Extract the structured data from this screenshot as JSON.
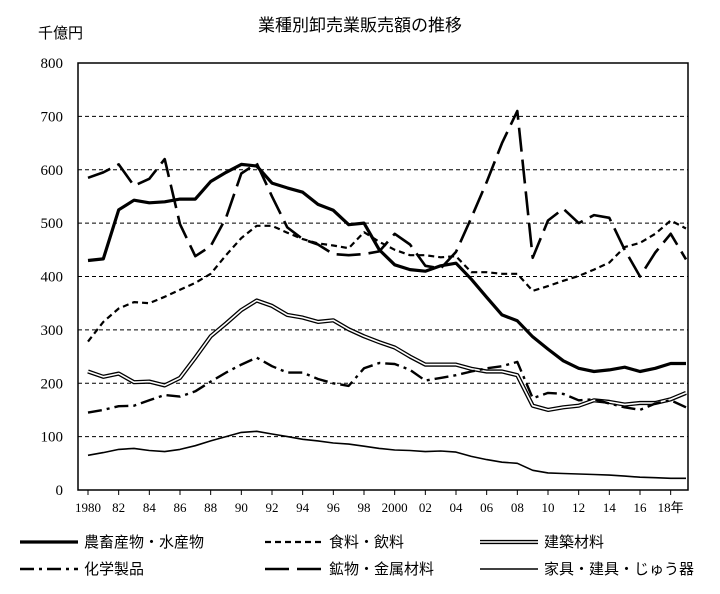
{
  "chart_data": {
    "type": "line",
    "title": "業種別卸売業販売額の推移",
    "unit_label": "千億円",
    "ylabel": "千億円",
    "xlabel": "",
    "ylim": [
      0,
      800
    ],
    "y_ticks": [
      "0",
      "100",
      "200",
      "300",
      "400",
      "500",
      "600",
      "700",
      "800"
    ],
    "x": [
      1980,
      1981,
      1982,
      1983,
      1984,
      1985,
      1986,
      1987,
      1988,
      1989,
      1990,
      1991,
      1992,
      1993,
      1994,
      1995,
      1996,
      1997,
      1998,
      1999,
      2000,
      2001,
      2002,
      2003,
      2004,
      2005,
      2006,
      2007,
      2008,
      2009,
      2010,
      2011,
      2012,
      2013,
      2014,
      2015,
      2016,
      2017,
      2018,
      2019
    ],
    "x_tick_labels": [
      {
        "x": 1980,
        "label": "1980"
      },
      {
        "x": 1982,
        "label": "82"
      },
      {
        "x": 1984,
        "label": "84"
      },
      {
        "x": 1986,
        "label": "86"
      },
      {
        "x": 1988,
        "label": "88"
      },
      {
        "x": 1990,
        "label": "90"
      },
      {
        "x": 1992,
        "label": "92"
      },
      {
        "x": 1994,
        "label": "94"
      },
      {
        "x": 1996,
        "label": "96"
      },
      {
        "x": 1998,
        "label": "98"
      },
      {
        "x": 2000,
        "label": "2000"
      },
      {
        "x": 2002,
        "label": "02"
      },
      {
        "x": 2004,
        "label": "04"
      },
      {
        "x": 2006,
        "label": "06"
      },
      {
        "x": 2008,
        "label": "08"
      },
      {
        "x": 2010,
        "label": "10"
      },
      {
        "x": 2012,
        "label": "12"
      },
      {
        "x": 2014,
        "label": "14"
      },
      {
        "x": 2016,
        "label": "16"
      },
      {
        "x": 2018,
        "label": "18年"
      }
    ],
    "grid": "horizontal-dashed",
    "legend_position": "bottom",
    "series": [
      {
        "name": "農畜産物・水産物",
        "style": "solid-thick",
        "values": [
          430,
          433,
          525,
          543,
          538,
          540,
          545,
          545,
          578,
          595,
          610,
          607,
          575,
          566,
          558,
          535,
          524,
          497,
          500,
          450,
          422,
          413,
          410,
          420,
          425,
          395,
          361,
          328,
          317,
          287,
          264,
          242,
          228,
          222,
          225,
          230,
          222,
          228,
          237,
          237
        ]
      },
      {
        "name": "食料・飲料",
        "style": "dashed",
        "values": [
          278,
          315,
          340,
          352,
          350,
          362,
          375,
          388,
          405,
          440,
          472,
          495,
          495,
          482,
          470,
          462,
          458,
          453,
          483,
          465,
          450,
          440,
          440,
          436,
          438,
          408,
          408,
          405,
          405,
          373,
          382,
          392,
          401,
          413,
          426,
          455,
          463,
          480,
          505,
          490
        ]
      },
      {
        "name": "建築材料",
        "style": "double",
        "values": [
          222,
          212,
          218,
          202,
          203,
          196,
          210,
          248,
          288,
          312,
          337,
          355,
          345,
          328,
          323,
          315,
          318,
          301,
          288,
          277,
          267,
          250,
          235,
          235,
          235,
          227,
          222,
          222,
          215,
          158,
          150,
          155,
          158,
          168,
          165,
          160,
          163,
          163,
          170,
          182
        ]
      },
      {
        "name": "化学製品",
        "style": "dash-dot",
        "values": [
          145,
          150,
          157,
          158,
          168,
          178,
          175,
          185,
          203,
          220,
          235,
          248,
          232,
          220,
          220,
          208,
          200,
          195,
          228,
          238,
          236,
          225,
          205,
          210,
          215,
          222,
          228,
          232,
          240,
          172,
          182,
          180,
          168,
          170,
          162,
          155,
          150,
          162,
          168,
          155
        ]
      },
      {
        "name": "鉱物・金属材料",
        "style": "long-dash",
        "values": [
          585,
          595,
          610,
          570,
          583,
          620,
          498,
          438,
          457,
          510,
          593,
          612,
          550,
          492,
          470,
          460,
          442,
          440,
          442,
          447,
          480,
          460,
          420,
          415,
          446,
          510,
          577,
          650,
          710,
          435,
          505,
          527,
          500,
          515,
          510,
          450,
          400,
          445,
          480,
          432
        ]
      },
      {
        "name": "家具・建具・じゅう器",
        "style": "thin",
        "values": [
          65,
          70,
          76,
          78,
          74,
          72,
          76,
          83,
          92,
          100,
          108,
          110,
          105,
          100,
          95,
          92,
          88,
          86,
          82,
          78,
          75,
          74,
          72,
          73,
          71,
          63,
          57,
          52,
          50,
          37,
          32,
          31,
          30,
          29,
          28,
          26,
          24,
          23,
          22,
          22
        ]
      }
    ]
  },
  "legend_labels": [
    "農畜産物・水産物",
    "食料・飲料",
    "建築材料",
    "化学製品",
    "鉱物・金属材料",
    "家具・建具・じゅう器"
  ]
}
